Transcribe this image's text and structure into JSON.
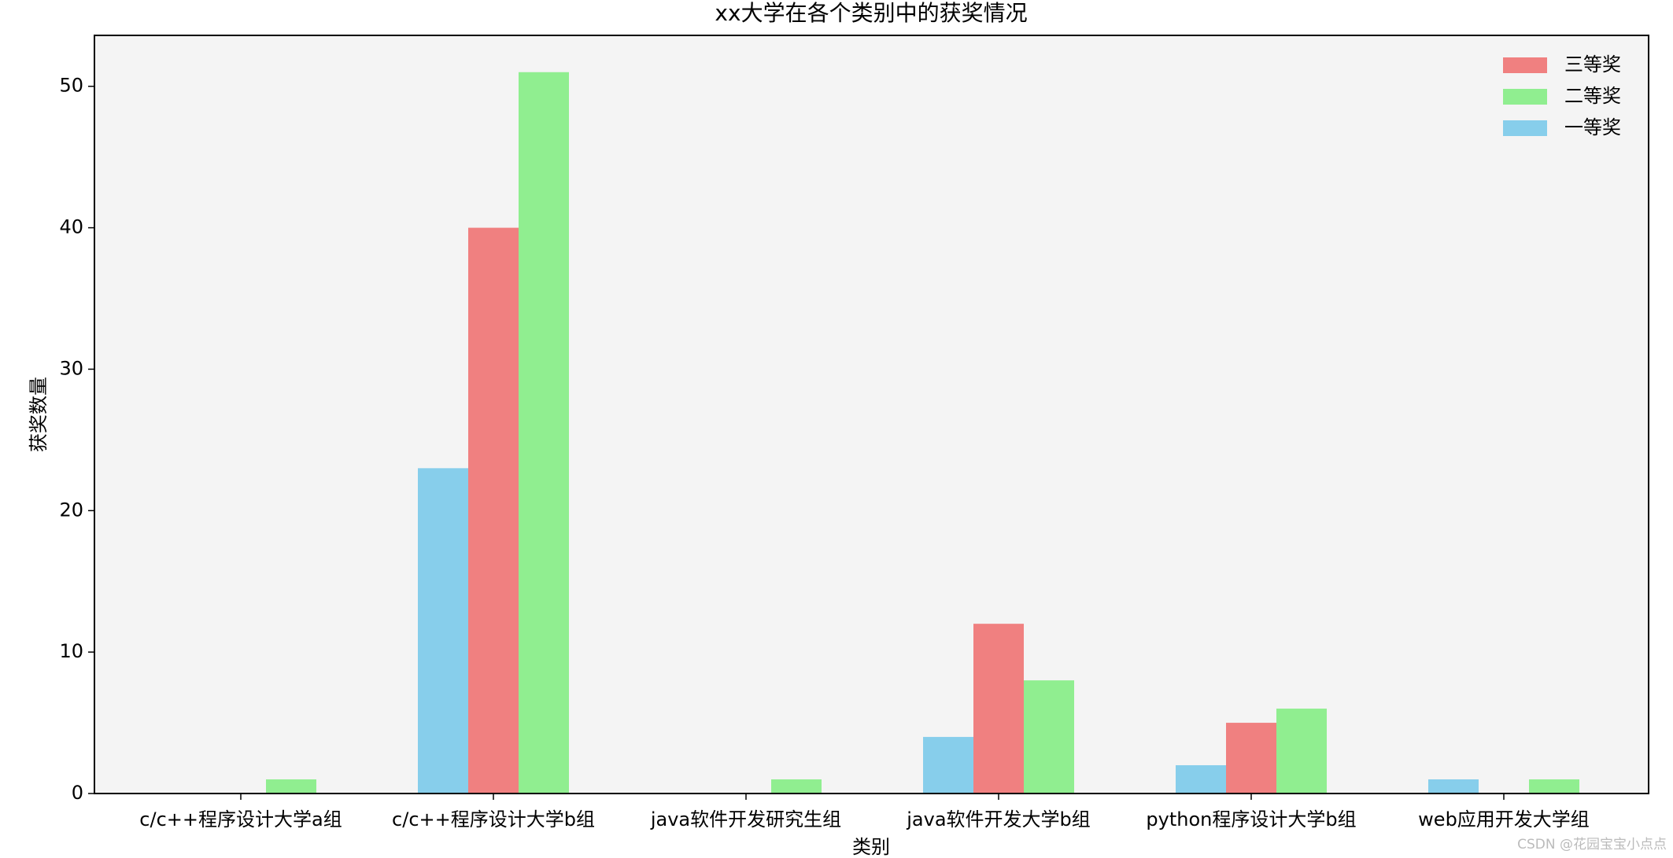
{
  "chart_data": {
    "type": "bar",
    "title": "xx大学在各个类别中的获奖情况",
    "x_label": "类别",
    "y_label": "获奖数量",
    "categories": [
      "c/c++程序设计大学a组",
      "c/c++程序设计大学b组",
      "java软件开发研究生组",
      "java软件开发大学b组",
      "python程序设计大学b组",
      "web应用开发大学组"
    ],
    "series": [
      {
        "name": "三等奖",
        "color": "#f08080",
        "values": [
          0,
          40,
          0,
          12,
          5,
          0
        ]
      },
      {
        "name": "二等奖",
        "color": "#90ee90",
        "values": [
          1,
          51,
          1,
          8,
          6,
          1
        ]
      },
      {
        "name": "一等奖",
        "color": "#87ceeb",
        "values": [
          0,
          23,
          0,
          4,
          2,
          1
        ]
      }
    ],
    "ylim": [
      0,
      53.6
    ],
    "yticks": [
      0,
      10,
      20,
      30,
      40,
      50
    ],
    "grid": false,
    "legend": "upper right"
  },
  "watermark": "CSDN @花园宝宝小点点"
}
